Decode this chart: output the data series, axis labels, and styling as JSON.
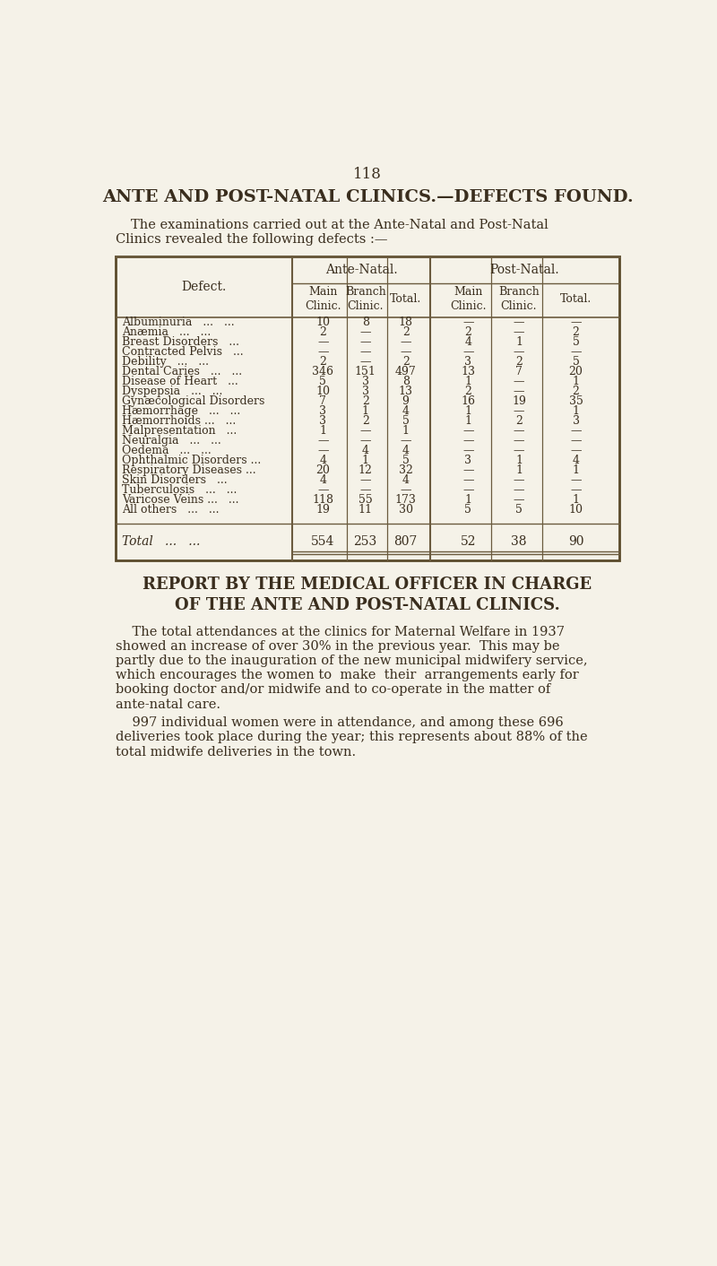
{
  "page_number": "118",
  "main_title": "ANTE AND POST-NATAL CLINICS.—DEFECTS FOUND.",
  "intro_line1": "The examinations carried out at the Ante-Natal and Post-Natal",
  "intro_line2": "Clinics revealed the following defects :—",
  "defect_col_header": "Defect.",
  "ante_natal_header": "Ante-Natal.",
  "post_natal_header": "Post-Natal.",
  "sub_headers": [
    "Main\nClinic.",
    "Branch\nClinic.",
    "Total.",
    "Main\nClinic.",
    "Branch\nClinic.",
    "Total."
  ],
  "rows": [
    [
      "Albuminuria   ...   ...",
      "10",
      "8",
      "18",
      "—",
      "—",
      "—"
    ],
    [
      "Anæmia   ...   ...",
      "2",
      "—",
      "2",
      "2",
      "—",
      "2"
    ],
    [
      "Breast Disorders   ...",
      "—",
      "—",
      "—",
      "4",
      "1",
      "5"
    ],
    [
      "Contracted Pelvis   ...",
      "—",
      "—",
      "—",
      "—",
      "—",
      "—"
    ],
    [
      "Debility   ...   ...",
      "2",
      "—",
      "2",
      "3",
      "2",
      "5"
    ],
    [
      "Dental Caries   ...   ...",
      "346",
      "151",
      "497",
      "13",
      "7",
      "20"
    ],
    [
      "Disease of Heart   ...",
      "5",
      "3",
      "8",
      "1",
      "—",
      "1"
    ],
    [
      "Dyspepsia   ...   ...",
      "10",
      "3",
      "13",
      "2",
      "—",
      "2"
    ],
    [
      "Gynæcological Disorders",
      "7",
      "2",
      "9",
      "16",
      "19",
      "35"
    ],
    [
      "Hæmorrhage   ...   ...",
      "3",
      "1",
      "4",
      "1",
      "—",
      "1"
    ],
    [
      "Hæmorrhoids ...   ...",
      "3",
      "2",
      "5",
      "1",
      "2",
      "3"
    ],
    [
      "Malpresentation   ...",
      "1",
      "—",
      "1",
      "—",
      "—",
      "—"
    ],
    [
      "Neuralgia   ...   ...",
      "—",
      "—",
      "—",
      "—",
      "—",
      "—"
    ],
    [
      "Oedema   ...   ...",
      "—",
      "4",
      "4",
      "—",
      "—",
      "—"
    ],
    [
      "Ophthalmic Disorders ...",
      "4",
      "1",
      "5",
      "3",
      "1",
      "4"
    ],
    [
      "Respiratory Diseases ...",
      "20",
      "12",
      "32",
      "—",
      "1",
      "1"
    ],
    [
      "Skin Disorders   ...",
      "4",
      "—",
      "4",
      "—",
      "—",
      "—"
    ],
    [
      "Tuberculosis   ...   ...",
      "—",
      "—",
      "—",
      "—",
      "—",
      "—"
    ],
    [
      "Varicose Veins ...   ...",
      "118",
      "55",
      "173",
      "1",
      "—",
      "1"
    ],
    [
      "All others   ...   ...",
      "19",
      "11",
      "30",
      "5",
      "5",
      "10"
    ]
  ],
  "total_row": [
    "Total   ...   ...",
    "554",
    "253",
    "807",
    "52",
    "38",
    "90"
  ],
  "report_title_line1": "REPORT BY THE MEDICAL OFFICER IN CHARGE",
  "report_title_line2": "OF THE ANTE AND POST-NATAL CLINICS.",
  "para1_lines": [
    "    The total attendances at the clinics for Maternal Welfare in 1937",
    "showed an increase of over 30% in the previous year.  This may be",
    "partly due to the inauguration of the new municipal midwifery service,",
    "which encourages the women to  make  their  arrangements early for",
    "booking doctor and/or midwife and to co-operate in the matter of",
    "ante-natal care."
  ],
  "para2_lines": [
    "    997 individual women were in attendance, and among these 696",
    "deliveries took place during the year; this represents about 88% of the",
    "total midwife deliveries in the town."
  ],
  "bg_color": "#f5f2e8",
  "text_color": "#3a2e1e",
  "border_color": "#5a4a2a",
  "table_line_color": "#6b5b3e"
}
